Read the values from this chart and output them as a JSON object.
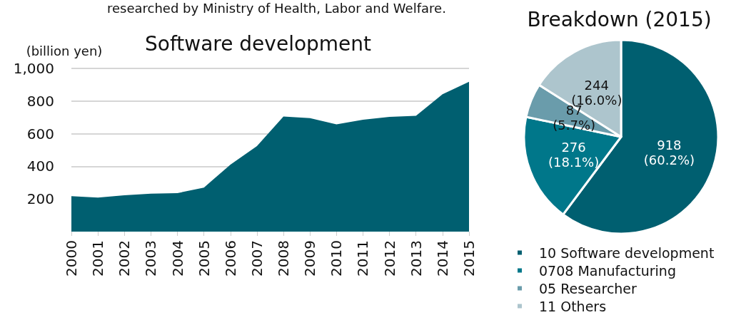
{
  "chart_data": [
    {
      "type": "area",
      "title": "Software development",
      "ylabel": "(billion yen)",
      "annotations": [
        "researched by Ministry of Health, Labor and Welfare."
      ],
      "categories": [
        "2000",
        "2001",
        "2002",
        "2003",
        "2004",
        "2005",
        "2006",
        "2007",
        "2008",
        "2009",
        "2010",
        "2011",
        "2012",
        "2013",
        "2014",
        "2015"
      ],
      "series": [
        {
          "color": "#005f70",
          "values": [
            217,
            208,
            223,
            232,
            236,
            270,
            411,
            524,
            705,
            695,
            657,
            686,
            703,
            710,
            842,
            918
          ]
        }
      ],
      "ylim": [
        0,
        1000
      ],
      "yticks": [
        200,
        400,
        600,
        800,
        {
          "value": 1000,
          "label": "1,000"
        }
      ],
      "grid": "y"
    },
    {
      "type": "pie",
      "title": "Breakdown (2015)",
      "categories": [
        "10 Software development",
        "0708 Manufacturing",
        "05 Researcher",
        "11 Others"
      ],
      "values": [
        918,
        276,
        87,
        244
      ],
      "colors": [
        "#005f70",
        "#00778a",
        "#6a9cab",
        "#adc5cd"
      ],
      "value_labels": [
        "918\n(60.2%)",
        "276\n(18.1%)",
        "87\n(5.7%)",
        "244\n(16.0%)"
      ],
      "legend": "bottom"
    }
  ]
}
